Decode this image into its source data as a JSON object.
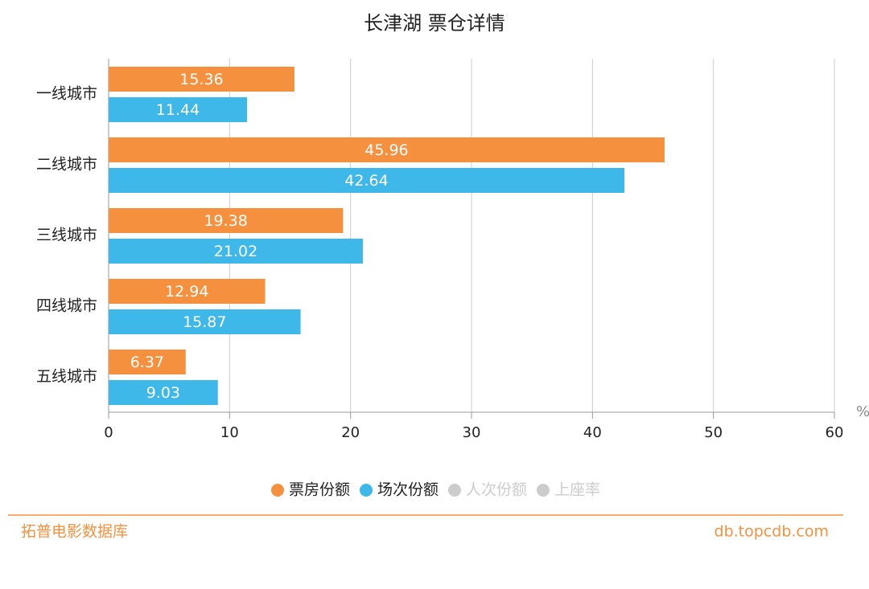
{
  "chart_data": {
    "type": "barh",
    "title": "长津湖 票仓详情",
    "categories": [
      "一线城市",
      "二线城市",
      "三线城市",
      "四线城市",
      "五线城市"
    ],
    "series": [
      {
        "name": "票房份额",
        "color": "#f5913e",
        "values": [
          15.36,
          45.96,
          19.38,
          12.94,
          6.37
        ]
      },
      {
        "name": "场次份额",
        "color": "#3db8e8",
        "values": [
          11.44,
          42.64,
          21.02,
          15.87,
          9.03
        ]
      }
    ],
    "inactive_series": [
      {
        "name": "人次份额",
        "color": "#cccccc"
      },
      {
        "name": "上座率",
        "color": "#cccccc"
      }
    ],
    "xlim": [
      0,
      60
    ],
    "xticks": [
      0,
      10,
      20,
      30,
      40,
      50,
      60
    ],
    "x_unit": "%",
    "grid": true,
    "footer": {
      "left": "拓普电影数据库",
      "right": "db.topcdb.com"
    }
  }
}
